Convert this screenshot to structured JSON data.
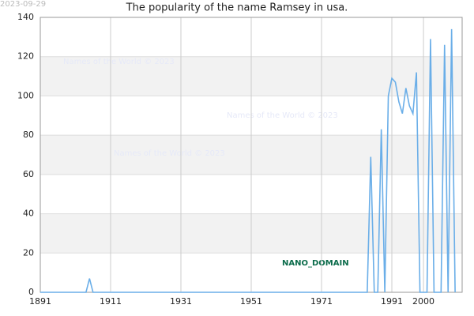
{
  "date_stamp": "2023-09-29",
  "watermarks": [
    "Names of the World © 2023",
    "Names of the World © 2023",
    "Names of the World © 2023"
  ],
  "domain_label": "NANO_DOMAIN",
  "chart_data": {
    "type": "line",
    "title": "The popularity of the name Ramsey in usa.",
    "x": [
      1891,
      1904,
      1905,
      1906,
      1984,
      1985,
      1986,
      1987,
      1988,
      1989,
      1990,
      1991,
      1992,
      1993,
      1994,
      1995,
      1996,
      1997,
      1998,
      1999,
      2000,
      2001,
      2002,
      2003,
      2004,
      2005,
      2006,
      2007,
      2008,
      2009
    ],
    "series": [
      {
        "color": "#6aaee8",
        "values": [
          0,
          0,
          7,
          0,
          0,
          69,
          0,
          0,
          83,
          0,
          100,
          109,
          107,
          97,
          91,
          104,
          95,
          91,
          112,
          0,
          0,
          0,
          129,
          0,
          0,
          0,
          126,
          0,
          134,
          0
        ]
      }
    ],
    "xlim": [
      1891,
      2011
    ],
    "xticks": [
      1891,
      1911,
      1931,
      1951,
      1971,
      1991,
      2000
    ],
    "ylim": [
      0,
      140
    ],
    "yticks": [
      0,
      20,
      40,
      60,
      80,
      100,
      120,
      140
    ],
    "grid": true,
    "banded": true
  }
}
